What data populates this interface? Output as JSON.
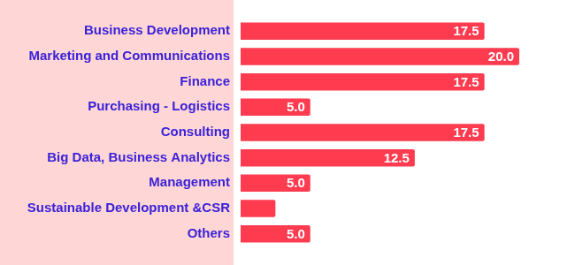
{
  "chart_data": {
    "type": "bar",
    "orientation": "horizontal",
    "categories": [
      "Business Development",
      "Marketing and Communications",
      "Finance",
      "Purchasing - Logistics",
      "Consulting",
      "Big Data, Business Analytics",
      "Management",
      "Sustainable Development &CSR",
      "Others"
    ],
    "values": [
      17.5,
      20.0,
      17.5,
      5.0,
      17.5,
      12.5,
      5.0,
      2.5,
      5.0
    ],
    "value_labels": [
      "17.5",
      "20.0",
      "17.5",
      "5.0",
      "17.5",
      "12.5",
      "5.0",
      null,
      "5.0"
    ],
    "color": "#ff3b50",
    "xlim": [
      0,
      24
    ],
    "grid": false,
    "data_labels": true,
    "tick_labels": "y"
  }
}
